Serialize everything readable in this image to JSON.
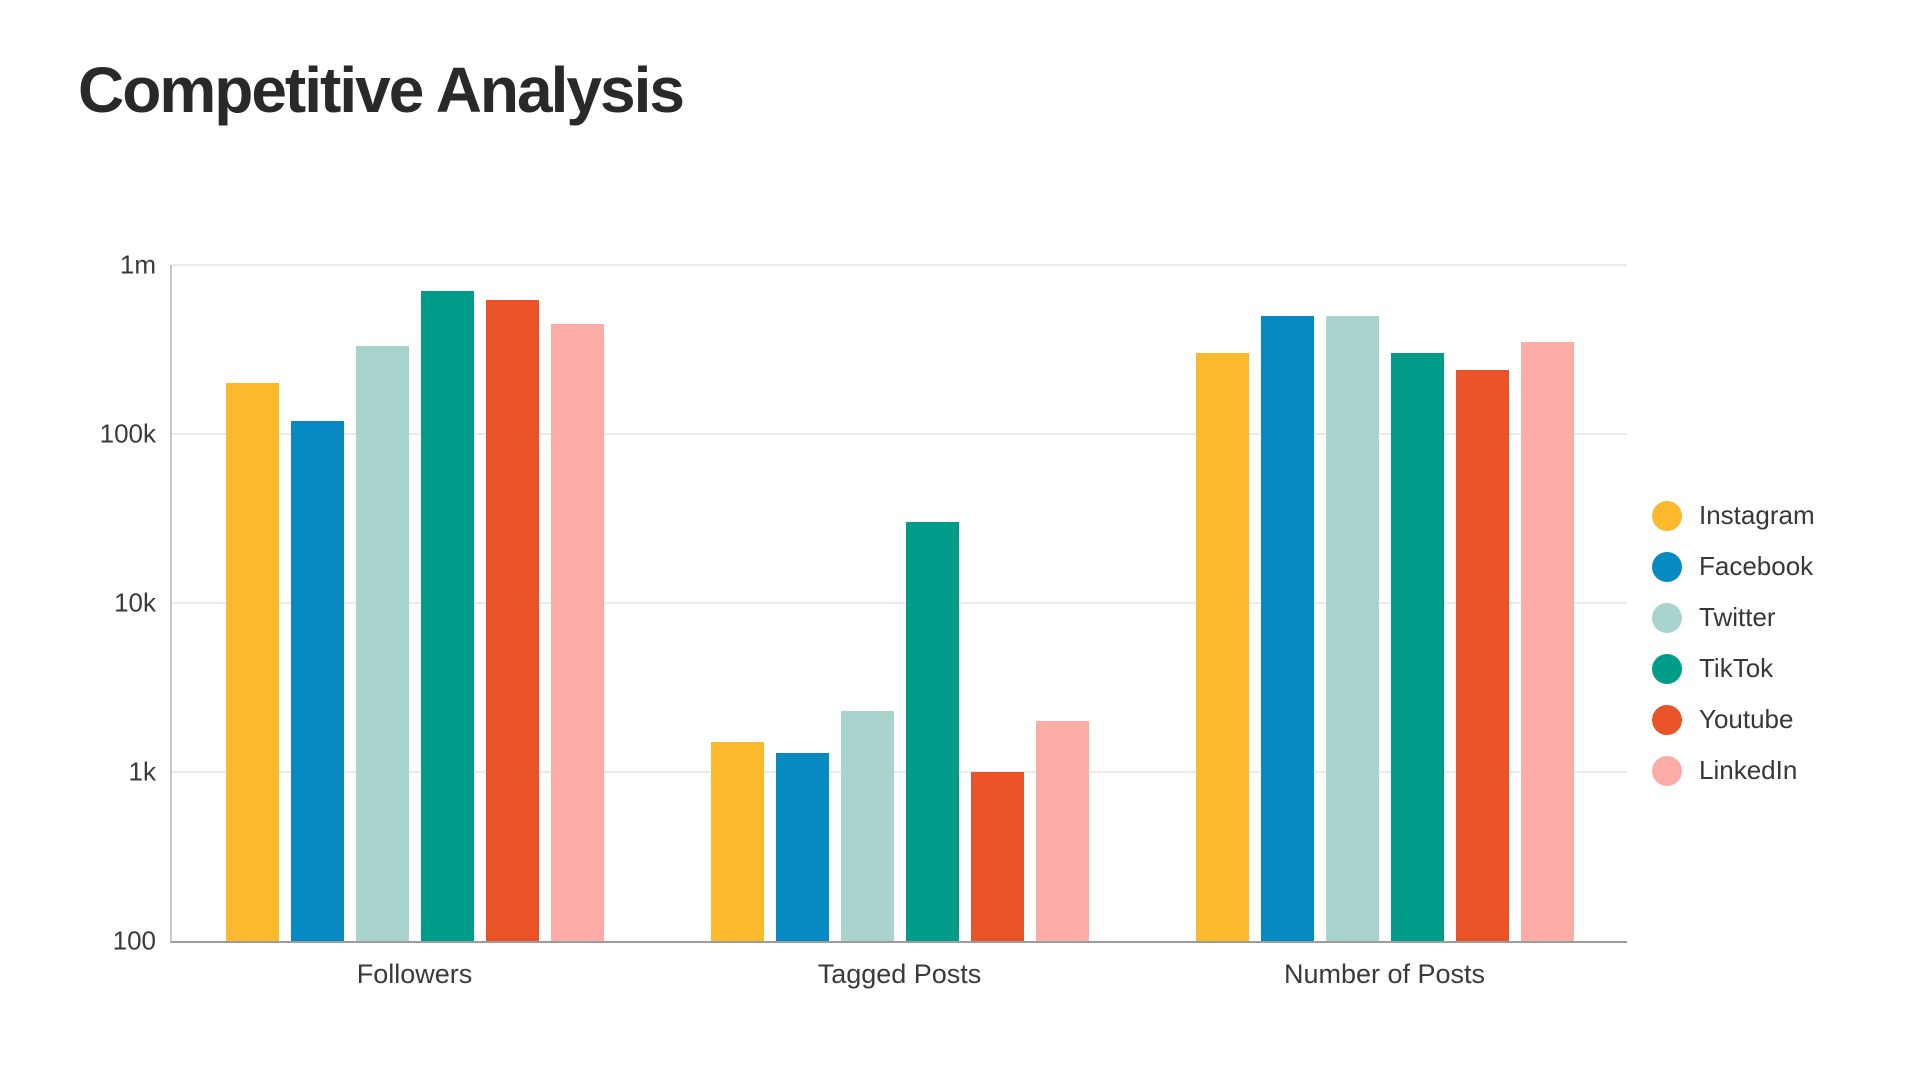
{
  "chart_data": {
    "type": "bar",
    "title": "Competitive Analysis",
    "y_scale": "log",
    "y_range": [
      100,
      1000000
    ],
    "grid": "horizontal",
    "legend_position": "right",
    "categories": [
      "Followers",
      "Tagged Posts",
      "Number of Posts"
    ],
    "series": [
      {
        "name": "Instagram",
        "color": "#FDB92D",
        "values": [
          200000,
          1500,
          300000
        ]
      },
      {
        "name": "Facebook",
        "color": "#0789C2",
        "values": [
          120000,
          1300,
          500000
        ]
      },
      {
        "name": "Twitter",
        "color": "#A9D4CD",
        "values": [
          330000,
          2300,
          500000
        ]
      },
      {
        "name": "TikTok",
        "color": "#009C8A",
        "values": [
          700000,
          30000,
          300000
        ]
      },
      {
        "name": "Youtube",
        "color": "#EA5327",
        "values": [
          620000,
          1000,
          240000
        ]
      },
      {
        "name": "LinkedIn",
        "color": "#FCACA7",
        "values": [
          450000,
          2000,
          350000
        ]
      }
    ],
    "y_ticks": [
      {
        "label": "1m",
        "value": 1000000
      },
      {
        "label": "100k",
        "value": 100000
      },
      {
        "label": "10k",
        "value": 10000
      },
      {
        "label": "1k",
        "value": 1000
      },
      {
        "label": "100",
        "value": 100
      }
    ]
  },
  "ui_colors": {
    "title_text": "#27292b",
    "axis_text": "#3a3a3a",
    "gridline": "#ebebeb",
    "y_axis_line": "#c7c7c7",
    "x_axis_line": "#9c9c9c",
    "background": "#ffffff"
  }
}
